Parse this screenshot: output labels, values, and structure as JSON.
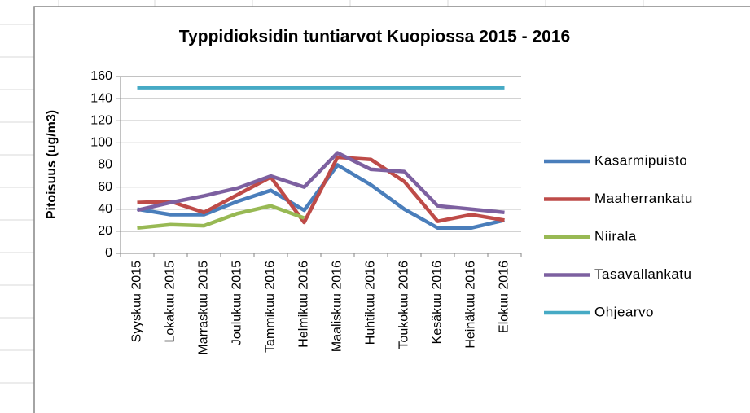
{
  "chart_data": {
    "type": "line",
    "title": "Typpidioksidin tuntiarvot Kuopiossa 2015 - 2016",
    "y_label": "Pitoisuus (ug/m3)",
    "categories": [
      "Syyskuu 2015",
      "Lokakuu 2015",
      "Marraskuu 2015",
      "Joulukuu 2015",
      "Tammikuu 2016",
      "Helmikuu 2016",
      "Maaliskuu 2016",
      "Huhtikuu 2016",
      "Toukokuu 2016",
      "Kesäkuu 2016",
      "Heinäkuu 2016",
      "Elokuu 2016"
    ],
    "series": [
      {
        "name": "Kasarmipuisto",
        "color": "#4a7ebb",
        "values": [
          40,
          35,
          35,
          47,
          57,
          39,
          80,
          62,
          40,
          23,
          23,
          30
        ]
      },
      {
        "name": "Maaherrankatu",
        "color": "#be4b48",
        "values": [
          46,
          47,
          37,
          53,
          69,
          28,
          87,
          85,
          65,
          29,
          35,
          30
        ]
      },
      {
        "name": "Niirala",
        "color": "#98b954",
        "values": [
          23,
          26,
          25,
          36,
          43,
          32,
          null,
          null,
          null,
          null,
          null,
          null
        ]
      },
      {
        "name": "Tasavallankatu",
        "color": "#7d60a0",
        "values": [
          39,
          46,
          52,
          59,
          70,
          60,
          91,
          76,
          74,
          43,
          40,
          37
        ]
      },
      {
        "name": "Ohjearvo",
        "color": "#46aac5",
        "values": [
          150,
          150,
          150,
          150,
          150,
          150,
          150,
          150,
          150,
          150,
          150,
          150
        ]
      }
    ],
    "ylim": [
      0,
      160
    ],
    "yticks": [
      0,
      20,
      40,
      60,
      80,
      100,
      120,
      140,
      160
    ],
    "grid": true,
    "legend": "right"
  }
}
